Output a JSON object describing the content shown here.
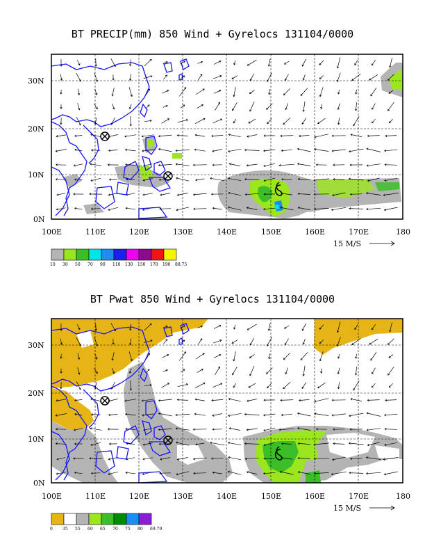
{
  "panels": [
    {
      "title": "BT PRECIP(mm) 850 Wind + Gyrelocs 131104/0000",
      "lat_labels": [
        "30N",
        "20N",
        "10N",
        "0N"
      ],
      "lon_labels": [
        "100E",
        "110E",
        "120E",
        "130E",
        "140E",
        "150E",
        "160E",
        "170E",
        "180"
      ],
      "wind_ref": "15 M/S",
      "colorbar_labels": [
        "10",
        "30",
        "50",
        "70",
        "90",
        "110",
        "130",
        "150",
        "170",
        "190",
        "88.75"
      ],
      "colorbar_colors": [
        "#b4b4b4",
        "#9be61e",
        "#3cbe28",
        "#00e6e6",
        "#1e8cf0",
        "#1e1ef0",
        "#f000f0",
        "#8c0a8c",
        "#f01414",
        "#f5f500"
      ]
    },
    {
      "title": "BT Pwat 850 Wind + Gyrelocs 131104/0000",
      "lat_labels": [
        "30N",
        "20N",
        "10N",
        "0N"
      ],
      "lon_labels": [
        "100E",
        "110E",
        "120E",
        "130E",
        "140E",
        "150E",
        "160E",
        "170E",
        "180"
      ],
      "wind_ref": "15 M/S",
      "colorbar_labels": [
        "0",
        "35",
        "55",
        "60",
        "65",
        "70",
        "75",
        "80",
        "69.79"
      ],
      "colorbar_colors": [
        "#e6b414",
        "#ffffff",
        "#b4b4b4",
        "#9be61e",
        "#3cbe28",
        "#008c00",
        "#1e8cf0",
        "#8c1ed2"
      ]
    }
  ],
  "colors": {
    "coast": "#1414ff",
    "grid": "#000000"
  },
  "gyre_markers": [
    "circled-x-icon",
    "circled-x-icon",
    "tropical-storm-icon"
  ]
}
